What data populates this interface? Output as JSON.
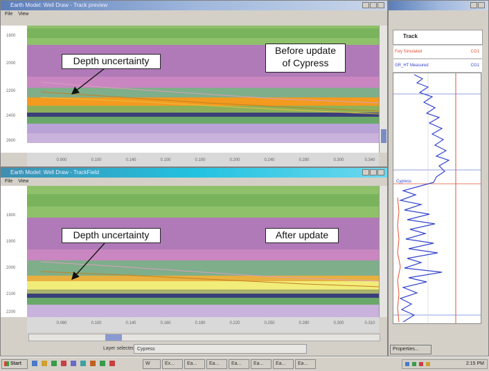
{
  "top_window": {
    "title": "Earth Model: Well Draw - Track preview",
    "menu": [
      "File",
      "View"
    ],
    "y_ticks": [
      "1800",
      "2000",
      "2200",
      "2400",
      "2600"
    ],
    "x_ticks": [
      "0.900",
      "0.100",
      "0.140",
      "0.100",
      "0.100",
      "0.200",
      "0.240",
      "0.280",
      "0.300",
      "0.340"
    ],
    "callout_left": "Depth uncertainty",
    "callout_right_line1": "Before update",
    "callout_right_line2": "of Cypress"
  },
  "bottom_window": {
    "title": "Earth Model: Well Draw - TrackField",
    "menu": [
      "File",
      "View"
    ],
    "y_ticks": [
      "1800",
      "1900",
      "2000",
      "2100",
      "2200"
    ],
    "x_ticks": [
      "0.080",
      "0.100",
      "0.140",
      "0.160",
      "0.190",
      "0.220",
      "0.250",
      "0.280",
      "0.300",
      "0.310"
    ],
    "callout_left": "Depth uncertainty",
    "callout_right": "After update",
    "status_label": "Layer selected:",
    "status_value": "Cypress"
  },
  "right_panel": {
    "header": "Track",
    "row1": "Fwy Simulated",
    "row1_value": "CG1",
    "row2": "GR_HT Measured",
    "row2_value": "CG1",
    "marker_label": "Cypress",
    "button_label": "Properties..."
  },
  "taskbar": {
    "start_label": "Start",
    "buttons": [
      "W",
      "Ex...",
      "Ea...",
      "Ea...",
      "Ea...",
      "Ea...",
      "Ea...",
      "Ea..."
    ],
    "clock": "2:15 PM"
  },
  "colors": {
    "green_light": "#8fc06a",
    "green_dark": "#5e9e50",
    "purple": "#b07ab8",
    "pink": "#c986c0",
    "teal_green": "#7fae8a",
    "orange": "#f39a1f",
    "yellow": "#f2ec7a",
    "navy": "#3a3f7a",
    "lavender": "#c9b2dc",
    "log_blue": "#3344cc"
  }
}
